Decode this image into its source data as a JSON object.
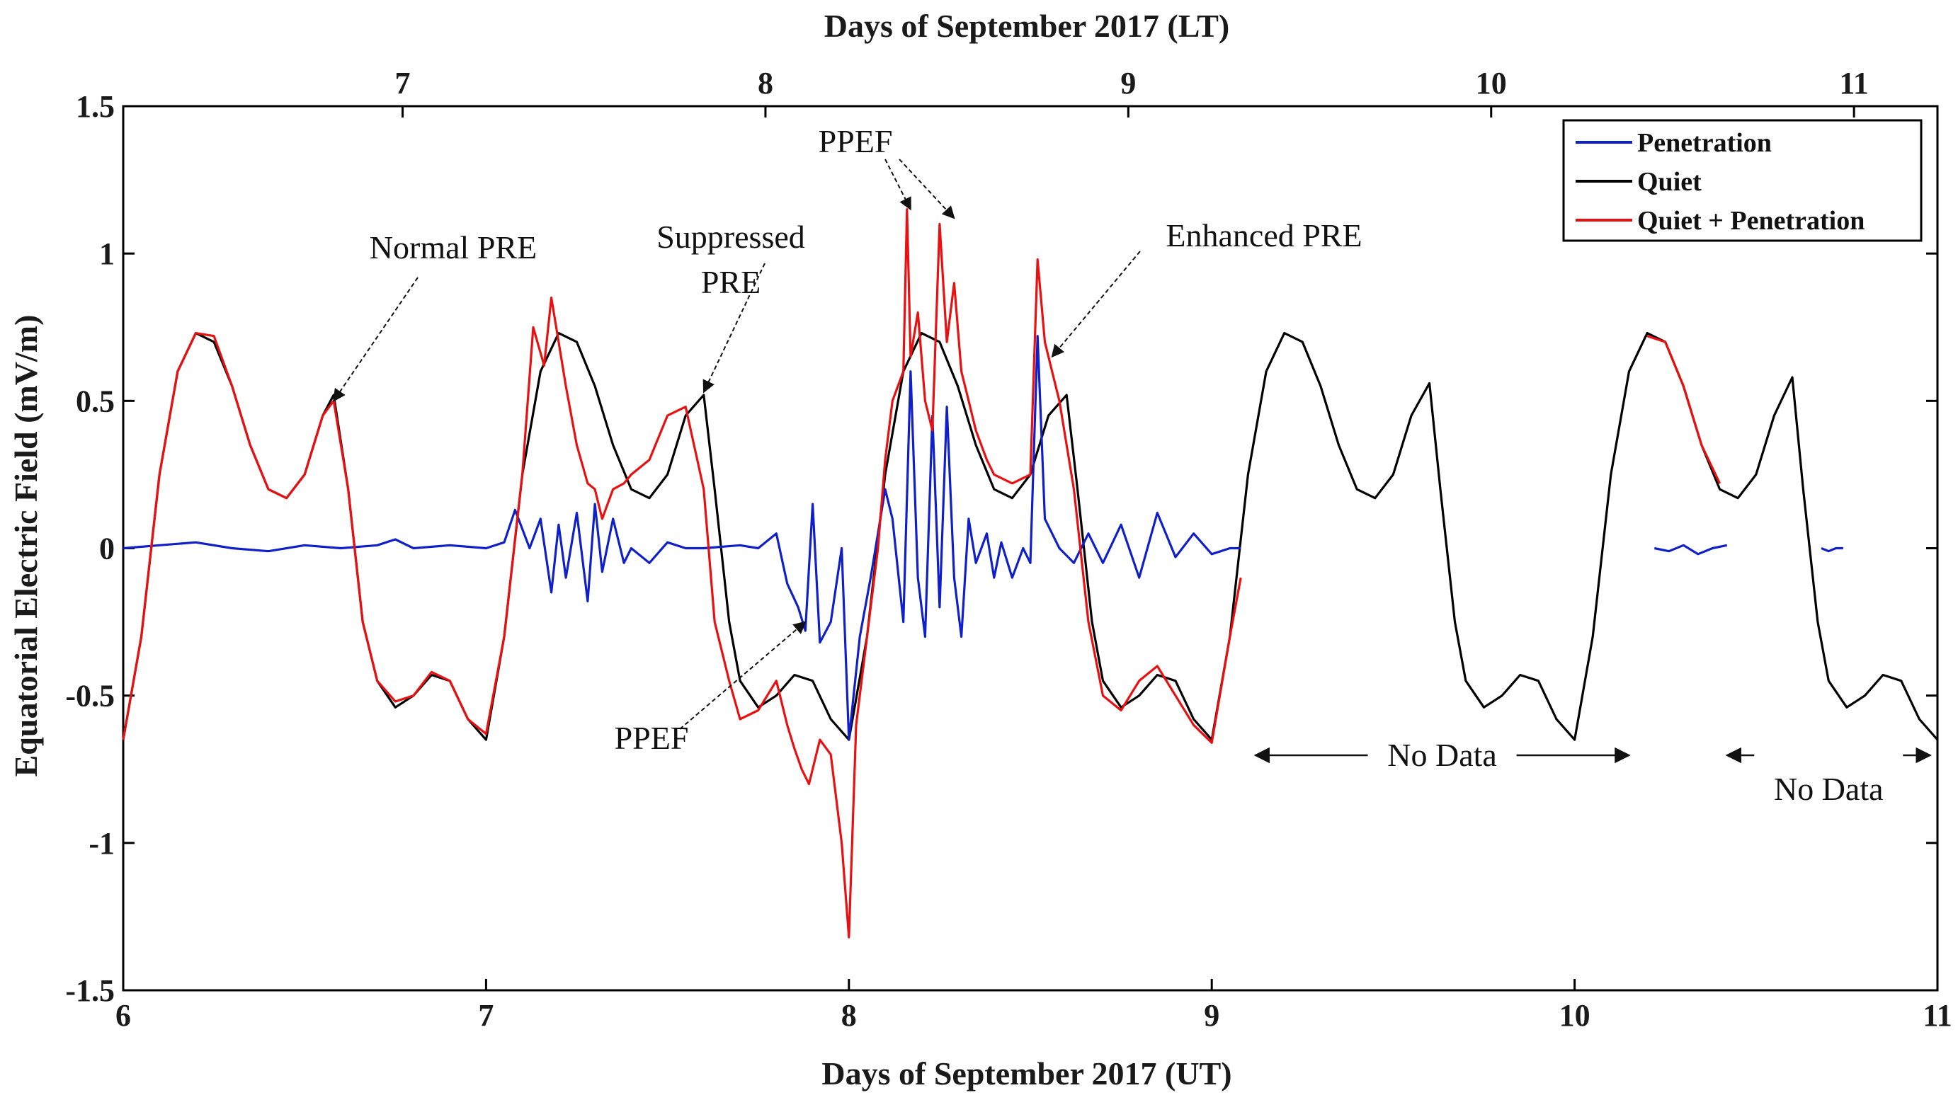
{
  "chart_data": {
    "type": "line",
    "title_top": "Days of September 2017 (LT)",
    "xlabel": "Days of September 2017 (UT)",
    "ylabel": "Equatorial Electric Field  (mV/m)",
    "xlim": [
      6,
      11
    ],
    "ylim": [
      -1.5,
      1.5
    ],
    "x_ticks": [
      6,
      7,
      8,
      9,
      10,
      11
    ],
    "x_tick_labels": [
      "6",
      "7",
      "8",
      "9",
      "10",
      "11"
    ],
    "y_ticks": [
      -1.5,
      -1,
      -0.5,
      0,
      0.5,
      1,
      1.5
    ],
    "y_tick_labels": [
      "-1.5",
      "-1",
      "-0.5",
      "0",
      "0.5",
      "1",
      "1.5"
    ],
    "top_ticks": [
      6.77,
      7.77,
      8.77,
      9.77,
      10.77
    ],
    "top_tick_labels": [
      "7",
      "8",
      "9",
      "10",
      "11"
    ],
    "legend": {
      "position": "top-right",
      "entries": [
        "Penetration",
        "Quiet",
        "Quiet + Penetration"
      ]
    },
    "series": [
      {
        "name": "Quiet",
        "color": "#000000",
        "x": [
          6.0,
          6.05,
          6.1,
          6.15,
          6.2,
          6.25,
          6.3,
          6.35,
          6.4,
          6.45,
          6.5,
          6.55,
          6.58,
          6.62,
          6.66,
          6.7,
          6.75,
          6.8,
          6.85,
          6.9,
          6.95,
          7.0,
          7.05,
          7.1,
          7.15,
          7.2,
          7.25,
          7.3,
          7.35,
          7.4,
          7.45,
          7.5,
          7.55,
          7.6,
          7.63,
          7.67,
          7.7,
          7.75,
          7.8,
          7.85,
          7.9,
          7.95,
          8.0,
          8.05,
          8.1,
          8.15,
          8.2,
          8.25,
          8.3,
          8.35,
          8.4,
          8.45,
          8.5,
          8.55,
          8.6,
          8.63,
          8.67,
          8.7,
          8.75,
          8.8,
          8.85,
          8.9,
          8.95,
          9.0,
          9.05,
          9.1,
          9.15,
          9.2,
          9.25,
          9.3,
          9.35,
          9.4,
          9.45,
          9.5,
          9.55,
          9.6,
          9.63,
          9.67,
          9.7,
          9.75,
          9.8,
          9.85,
          9.9,
          9.95,
          10.0,
          10.05,
          10.1,
          10.15,
          10.2,
          10.25,
          10.3,
          10.35,
          10.4,
          10.45,
          10.5,
          10.55,
          10.6,
          10.63,
          10.67,
          10.7,
          10.75,
          10.8,
          10.85,
          10.9,
          10.95,
          11.0
        ],
        "values": [
          -0.65,
          -0.3,
          0.25,
          0.6,
          0.73,
          0.7,
          0.55,
          0.35,
          0.2,
          0.17,
          0.25,
          0.45,
          0.52,
          0.2,
          -0.25,
          -0.45,
          -0.54,
          -0.5,
          -0.43,
          -0.45,
          -0.58,
          -0.65,
          -0.3,
          0.25,
          0.6,
          0.73,
          0.7,
          0.55,
          0.35,
          0.2,
          0.17,
          0.25,
          0.45,
          0.52,
          0.2,
          -0.25,
          -0.45,
          -0.54,
          -0.5,
          -0.43,
          -0.45,
          -0.58,
          -0.65,
          -0.3,
          0.25,
          0.6,
          0.73,
          0.7,
          0.55,
          0.35,
          0.2,
          0.17,
          0.25,
          0.45,
          0.52,
          0.2,
          -0.25,
          -0.45,
          -0.54,
          -0.5,
          -0.43,
          -0.45,
          -0.58,
          -0.65,
          -0.3,
          0.25,
          0.6,
          0.73,
          0.7,
          0.55,
          0.35,
          0.2,
          0.17,
          0.25,
          0.45,
          0.56,
          0.2,
          -0.25,
          -0.45,
          -0.54,
          -0.5,
          -0.43,
          -0.45,
          -0.58,
          -0.65,
          -0.3,
          0.25,
          0.6,
          0.73,
          0.7,
          0.55,
          0.35,
          0.2,
          0.17,
          0.25,
          0.45,
          0.58,
          0.2,
          -0.25,
          -0.45,
          -0.54,
          -0.5,
          -0.43,
          -0.45,
          -0.58,
          -0.65
        ]
      },
      {
        "name": "Penetration",
        "color": "#1020c8",
        "x": [
          6.0,
          6.1,
          6.2,
          6.3,
          6.4,
          6.5,
          6.6,
          6.7,
          6.75,
          6.8,
          6.9,
          7.0,
          7.05,
          7.08,
          7.12,
          7.15,
          7.18,
          7.2,
          7.22,
          7.25,
          7.28,
          7.3,
          7.32,
          7.35,
          7.38,
          7.4,
          7.45,
          7.5,
          7.55,
          7.6,
          7.7,
          7.75,
          7.8,
          7.83,
          7.86,
          7.88,
          7.9,
          7.92,
          7.95,
          7.98,
          8.0,
          8.03,
          8.06,
          8.08,
          8.1,
          8.12,
          8.15,
          8.17,
          8.19,
          8.21,
          8.23,
          8.25,
          8.27,
          8.29,
          8.31,
          8.33,
          8.35,
          8.38,
          8.4,
          8.42,
          8.45,
          8.48,
          8.5,
          8.52,
          8.54,
          8.56,
          8.58,
          8.62,
          8.66,
          8.7,
          8.75,
          8.8,
          8.85,
          8.9,
          8.95,
          9.0,
          9.05,
          9.08
        ],
        "values": [
          0.0,
          0.01,
          0.02,
          0.0,
          -0.01,
          0.01,
          0.0,
          0.01,
          0.03,
          0.0,
          0.01,
          0.0,
          0.02,
          0.13,
          0.0,
          0.1,
          -0.15,
          0.08,
          -0.1,
          0.12,
          -0.18,
          0.15,
          -0.08,
          0.1,
          -0.05,
          0.0,
          -0.05,
          0.02,
          0.0,
          0.0,
          0.01,
          0.0,
          0.05,
          -0.12,
          -0.2,
          -0.28,
          0.15,
          -0.32,
          -0.25,
          0.0,
          -0.65,
          -0.3,
          -0.1,
          0.05,
          0.2,
          0.1,
          -0.25,
          0.6,
          -0.1,
          -0.3,
          0.45,
          -0.2,
          0.48,
          -0.1,
          -0.3,
          0.1,
          -0.05,
          0.05,
          -0.1,
          0.02,
          -0.1,
          0.0,
          -0.05,
          0.72,
          0.1,
          0.05,
          0.0,
          -0.05,
          0.05,
          -0.05,
          0.08,
          -0.1,
          0.12,
          -0.03,
          0.05,
          -0.02,
          0.0,
          0.0
        ]
      },
      {
        "name": "Quiet + Penetration",
        "color": "#e81010",
        "x": [
          6.0,
          6.05,
          6.1,
          6.15,
          6.2,
          6.25,
          6.3,
          6.35,
          6.4,
          6.45,
          6.5,
          6.55,
          6.58,
          6.62,
          6.66,
          6.7,
          6.75,
          6.8,
          6.85,
          6.9,
          6.95,
          7.0,
          7.05,
          7.1,
          7.13,
          7.16,
          7.18,
          7.2,
          7.22,
          7.25,
          7.28,
          7.3,
          7.32,
          7.35,
          7.38,
          7.4,
          7.45,
          7.5,
          7.55,
          7.6,
          7.63,
          7.67,
          7.7,
          7.75,
          7.8,
          7.83,
          7.85,
          7.87,
          7.89,
          7.92,
          7.95,
          7.98,
          8.0,
          8.02,
          8.05,
          8.08,
          8.1,
          8.12,
          8.15,
          8.16,
          8.17,
          8.19,
          8.21,
          8.23,
          8.25,
          8.27,
          8.29,
          8.31,
          8.33,
          8.35,
          8.38,
          8.4,
          8.45,
          8.5,
          8.52,
          8.54,
          8.56,
          8.58,
          8.62,
          8.66,
          8.7,
          8.75,
          8.8,
          8.85,
          8.9,
          8.95,
          9.0,
          9.05,
          9.08
        ],
        "values": [
          -0.65,
          -0.3,
          0.25,
          0.6,
          0.73,
          0.72,
          0.55,
          0.35,
          0.2,
          0.17,
          0.25,
          0.45,
          0.5,
          0.2,
          -0.25,
          -0.45,
          -0.52,
          -0.5,
          -0.42,
          -0.45,
          -0.58,
          -0.63,
          -0.3,
          0.25,
          0.75,
          0.62,
          0.85,
          0.7,
          0.55,
          0.35,
          0.22,
          0.2,
          0.1,
          0.2,
          0.22,
          0.25,
          0.3,
          0.45,
          0.48,
          0.2,
          -0.25,
          -0.45,
          -0.58,
          -0.55,
          -0.45,
          -0.6,
          -0.68,
          -0.75,
          -0.8,
          -0.65,
          -0.7,
          -1.0,
          -1.32,
          -0.6,
          -0.3,
          0.0,
          0.3,
          0.5,
          0.6,
          1.15,
          0.65,
          0.8,
          0.5,
          0.4,
          1.1,
          0.7,
          0.9,
          0.6,
          0.5,
          0.4,
          0.3,
          0.25,
          0.22,
          0.25,
          0.98,
          0.7,
          0.6,
          0.5,
          0.2,
          -0.25,
          -0.5,
          -0.55,
          -0.45,
          -0.4,
          -0.5,
          -0.6,
          -0.66,
          -0.3,
          -0.1
        ]
      },
      {
        "name": "Quiet + Penetration (segment 2)",
        "color": "#e81010",
        "x": [
          10.2,
          10.25,
          10.3,
          10.35,
          10.4
        ],
        "values": [
          0.72,
          0.7,
          0.55,
          0.35,
          0.22
        ]
      },
      {
        "name": "Penetration (segment 2)",
        "color": "#1020c8",
        "x": [
          10.22,
          10.26,
          10.3,
          10.34,
          10.38,
          10.42
        ],
        "values": [
          0.0,
          -0.01,
          0.01,
          -0.02,
          0.0,
          0.01
        ]
      },
      {
        "name": "Penetration (segment 3)",
        "color": "#1020c8",
        "x": [
          10.68,
          10.7,
          10.72,
          10.74
        ],
        "values": [
          0.0,
          -0.01,
          0.0,
          0.0
        ]
      }
    ],
    "annotations": [
      {
        "text": "Normal PRE",
        "points_to": [
          6.58,
          0.5
        ]
      },
      {
        "text": "Suppressed",
        "points_to": [
          7.6,
          0.53
        ]
      },
      {
        "text": "PRE",
        "points_to": [
          7.6,
          0.53
        ]
      },
      {
        "text": "PPEF",
        "points_to": [
          8.17,
          1.15
        ]
      },
      {
        "text": "Enhanced PRE",
        "points_to": [
          8.56,
          0.65
        ]
      },
      {
        "text": "PPEF",
        "points_to": [
          7.88,
          -0.25
        ]
      },
      {
        "text": "No Data",
        "range": [
          9.12,
          10.15
        ]
      },
      {
        "text": "No Data",
        "range": [
          10.42,
          10.98
        ]
      }
    ]
  }
}
